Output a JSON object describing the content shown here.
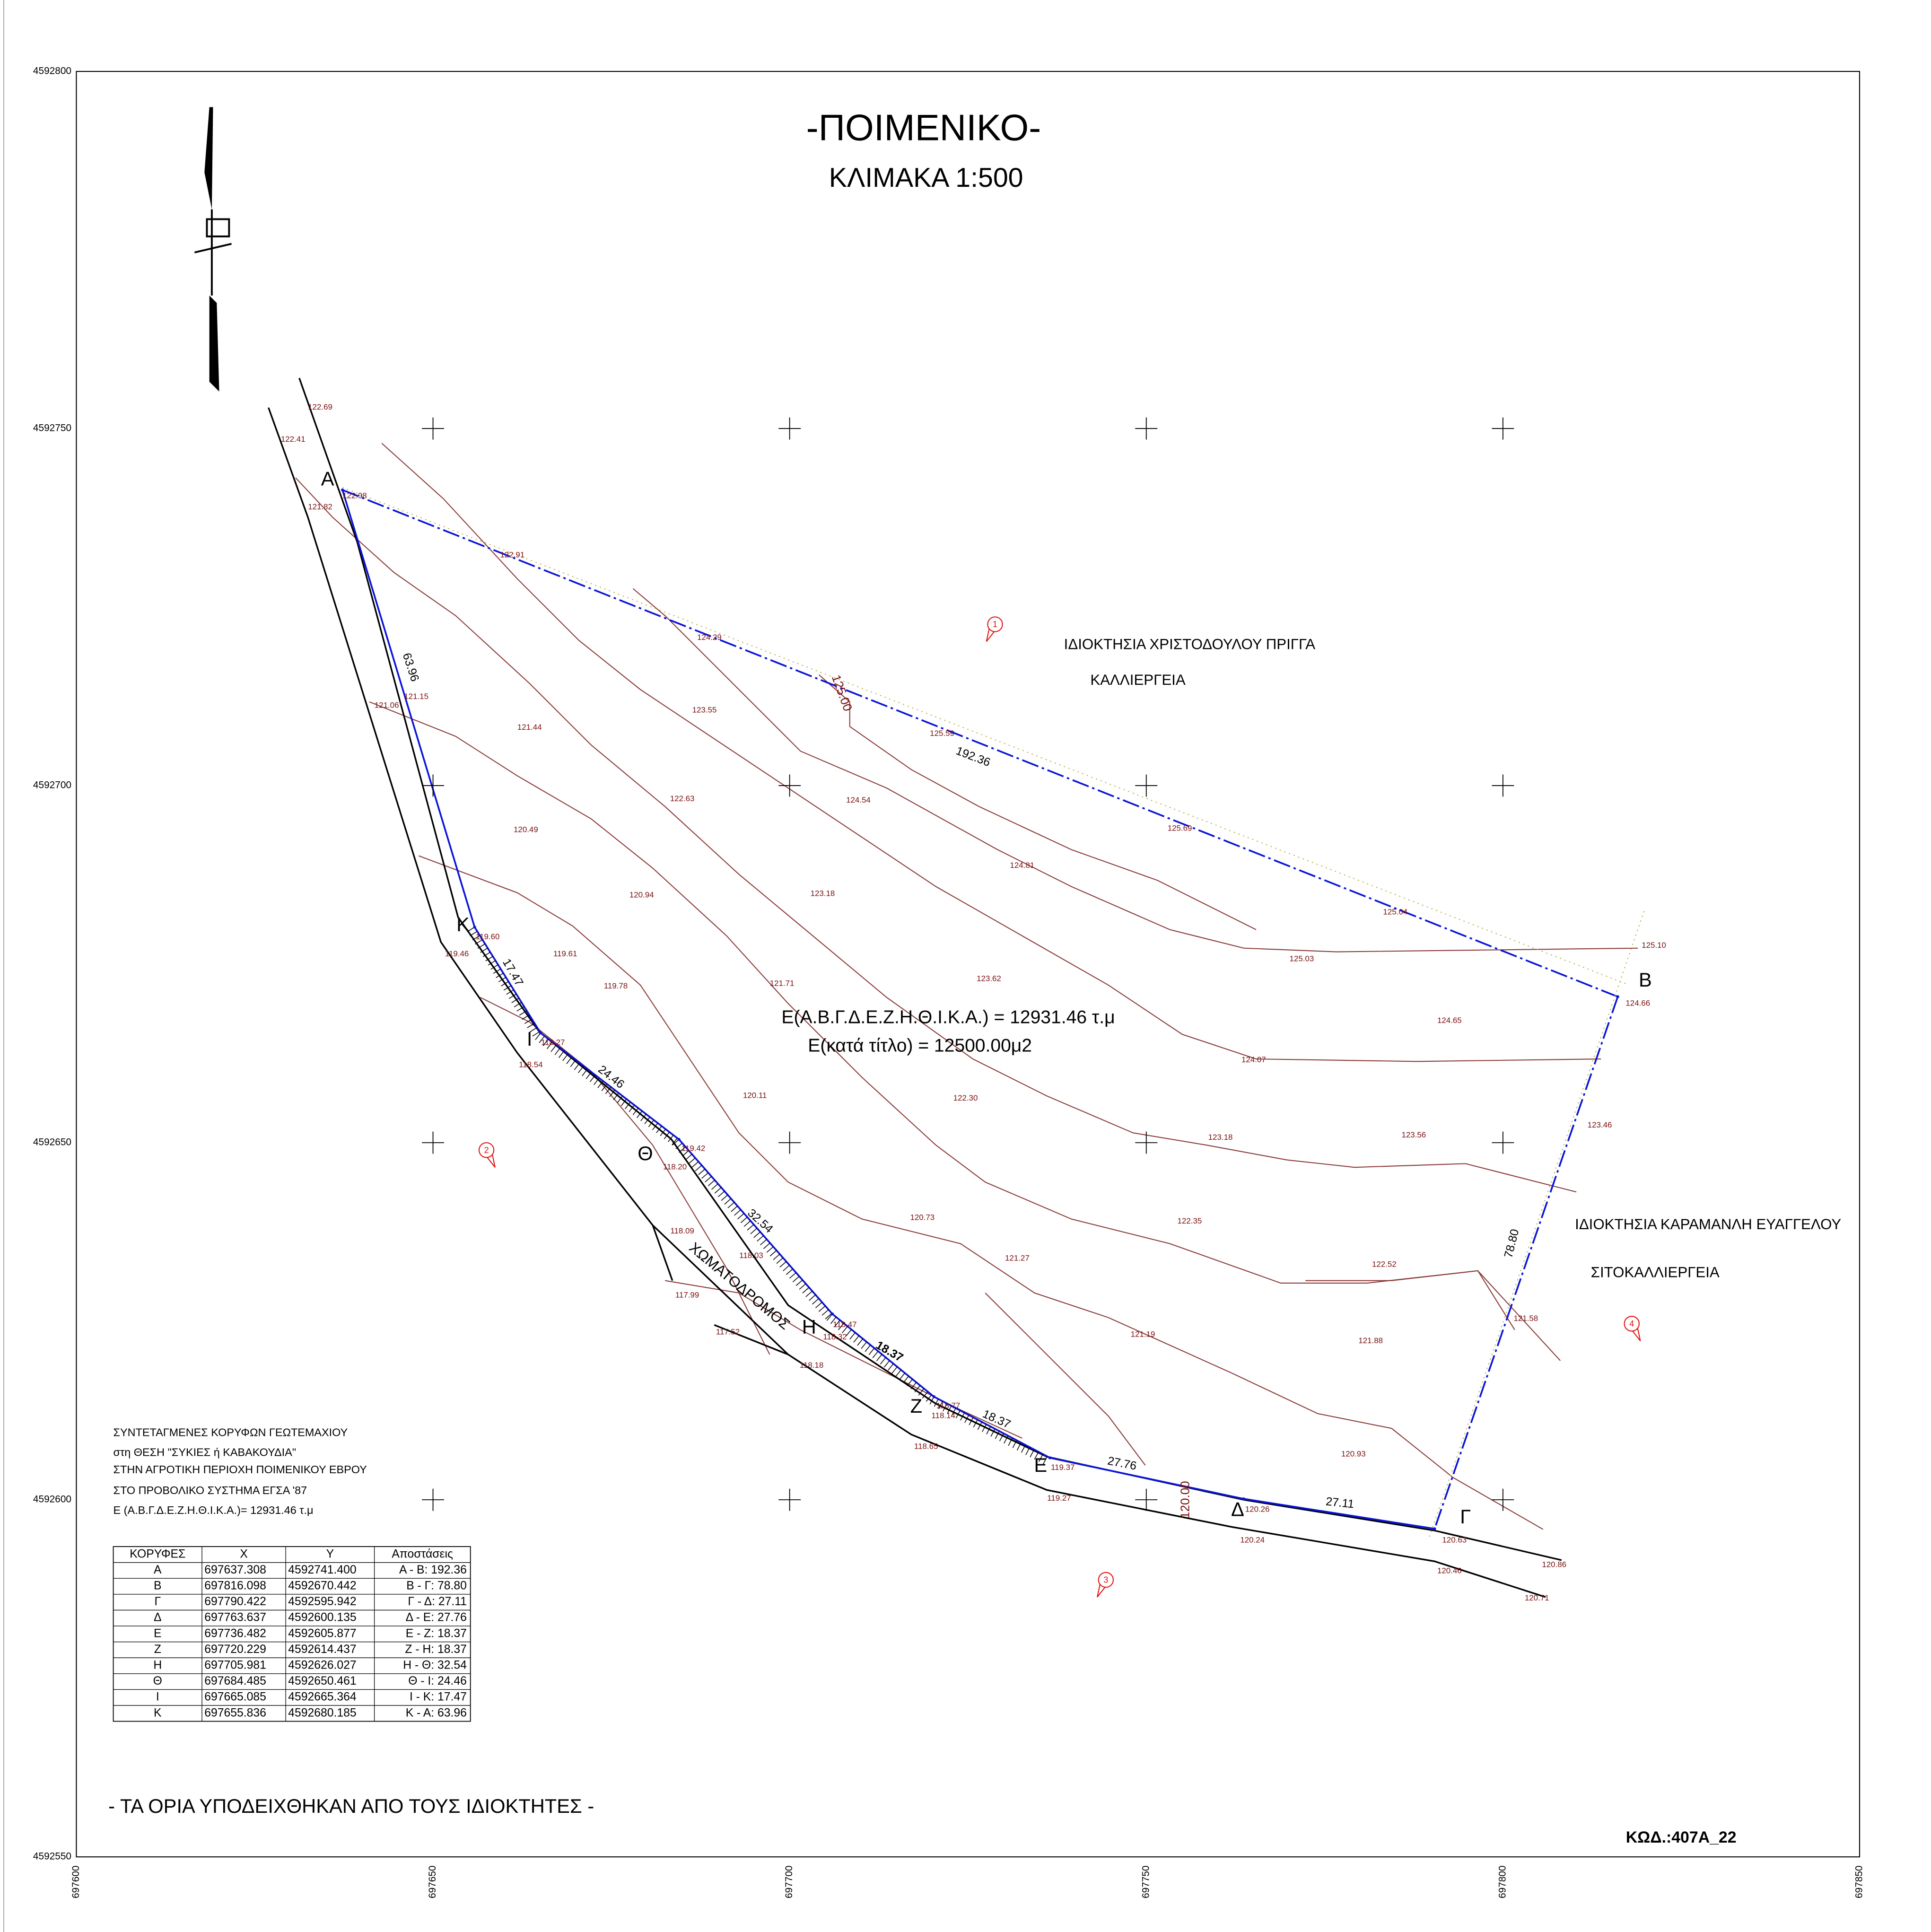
{
  "header": {
    "title": "-ΠΟΙΜΕΝΙΚΟ-",
    "scale": "ΚΛΙΜΑΚΑ 1:500"
  },
  "axes": {
    "xticks": [
      697600,
      697650,
      697700,
      697750,
      697800,
      697850
    ],
    "yticks": [
      4592800,
      4592750,
      4592700,
      4592650,
      4592600,
      4592550
    ]
  },
  "area": {
    "computed": "Ε(Α.Β.Γ.Δ.Ε.Ζ.Η.Θ.Ι.Κ.Α.) =  12931.46 τ.μ",
    "title_deed": "Ε(κατά τίτλο) =  12500.00μ2"
  },
  "vertices": [
    "Α",
    "Β",
    "Γ",
    "Δ",
    "Ε",
    "Ζ",
    "Η",
    "Θ",
    "Ι",
    "Κ"
  ],
  "distances": [
    "192.36",
    "78.80",
    "27.11",
    "27.76",
    "18.37",
    "18.37",
    "32.54",
    "24.46",
    "17.47",
    "63.96"
  ],
  "owners": [
    "ΙΔΙΟΚΤΗΣΙΑ ΧΡΙΣΤΟΔΟΥΛΟΥ ΠΡΙΓΓΑ",
    "ΚΑΛΛΙΕΡΓΕΙΑ",
    "ΙΔΙΟΚΤΗΣΙΑ ΚΑΡΑΜΑΝΛΗ ΕΥΑΓΓΕΛΟΥ",
    "ΣΙΤΟΚΑΛΛΙΕΡΓΕΙΑ"
  ],
  "road": "ΧΩΜΑΤΟΔΡΟΜΟΣ",
  "markers": [
    "1",
    "2",
    "3",
    "4"
  ],
  "spot_heights": [
    "122.69",
    "122.41",
    "122.98",
    "121.82",
    "122.91",
    "124.29",
    "125.00",
    "121.06",
    "121.15",
    "121.44",
    "123.55",
    "125.59",
    "122.63",
    "124.54",
    "120.49",
    "125.69",
    "124.81",
    "120.94",
    "123.18",
    "125.04",
    "119.60",
    "119.61",
    "119.46",
    "125.03",
    "125.10",
    "119.78",
    "121.71",
    "123.62",
    "124.66",
    "124.65",
    "118.27",
    "118.54",
    "124.07",
    "120.11",
    "122.30",
    "123.46",
    "123.18",
    "123.56",
    "119.42",
    "118.20",
    "120.73",
    "122.35",
    "118.09",
    "121.27",
    "122.52",
    "118.03",
    "117.99",
    "118.47",
    "117.52",
    "118.32",
    "121.58",
    "121.19",
    "121.88",
    "118.18",
    "118.77",
    "118.14",
    "118.65",
    "120.93",
    "119.37",
    "119.27",
    "120.26",
    "120.00",
    "120.24",
    "120.63",
    "120.46",
    "120.86",
    "120.71"
  ],
  "notes": [
    "ΣΥΝΤΕΤΑΓΜΕΝΕΣ ΚΟΡΥΦΩΝ ΓΕΩΤΕΜΑΧΙΟΥ",
    "στη ΘΕΣΗ \"ΣΥΚΙΕΣ ή ΚΑΒΑΚΟΥΔΙΑ\"",
    "ΣΤΗΝ ΑΓΡΟΤΙΚΗ ΠΕΡΙΟΧΗ ΠΟΙΜΕΝΙΚΟΥ ΕΒΡΟΥ",
    "ΣΤΟ ΠΡΟΒΟΛΙΚΟ ΣΥΣΤΗΜΑ ΕΓΣΑ '87",
    "Ε (Α.Β.Γ.Δ.Ε.Ζ.Η.Θ.Ι.Κ.Α.)= 12931.46 τ.μ"
  ],
  "table": {
    "header": [
      "ΚΟΡΥΦΕΣ",
      "X",
      "Y",
      "Αποστάσεις"
    ],
    "rows": [
      [
        "Α",
        "697637.308",
        "4592741.400",
        "Α - Β: 192.36"
      ],
      [
        "Β",
        "697816.098",
        "4592670.442",
        "Β - Γ: 78.80"
      ],
      [
        "Γ",
        "697790.422",
        "4592595.942",
        "Γ - Δ: 27.11"
      ],
      [
        "Δ",
        "697763.637",
        "4592600.135",
        "Δ - Ε: 27.76"
      ],
      [
        "Ε",
        "697736.482",
        "4592605.877",
        "Ε - Ζ: 18.37"
      ],
      [
        "Ζ",
        "697720.229",
        "4592614.437",
        "Ζ - Η: 18.37"
      ],
      [
        "Η",
        "697705.981",
        "4592626.027",
        "Η - Θ: 32.54"
      ],
      [
        "Θ",
        "697684.485",
        "4592650.461",
        "Θ - Ι: 24.46"
      ],
      [
        "Ι",
        "697665.085",
        "4592665.364",
        "Ι - Κ: 17.47"
      ],
      [
        "Κ",
        "697655.836",
        "4592680.185",
        "Κ - Α: 63.96"
      ]
    ]
  },
  "footer": {
    "note": "- ΤΑ ΟΡΙΑ ΥΠΟΔΕΙΧΘΗΚΑΝ ΑΠΟ ΤΟΥΣ ΙΔΙΟΚΤΗΤΕΣ -",
    "code": "ΚΩΔ.:407Α_22"
  }
}
